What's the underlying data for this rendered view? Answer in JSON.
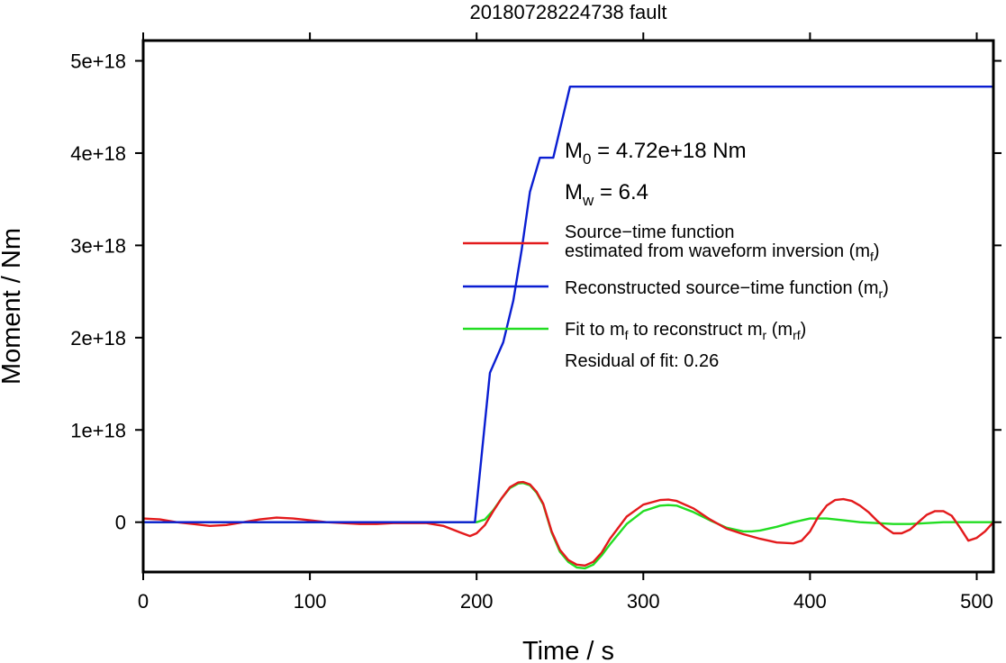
{
  "chart_data": {
    "type": "line",
    "title": "20180728224738 fault",
    "xlabel": "Time / s",
    "ylabel": "Moment / Nm",
    "xlim": [
      0,
      510
    ],
    "ylim": [
      -5.4e+17,
      5.22e+18
    ],
    "x_ticks": [
      0,
      100,
      200,
      300,
      400,
      500
    ],
    "x_tick_labels": [
      "0",
      "100",
      "200",
      "300",
      "400",
      "500"
    ],
    "y_ticks": [
      0,
      1e+18,
      2e+18,
      3e+18,
      4e+18,
      5e+18
    ],
    "y_tick_labels": [
      "0",
      "1e+18",
      "2e+18",
      "3e+18",
      "4e+18",
      "5e+18"
    ],
    "grid": false,
    "legend_position": "right",
    "annotations": {
      "m0": {
        "sym": "M",
        "sub": "0",
        "rest": " = 4.72e+18 Nm"
      },
      "mw": {
        "sym": "M",
        "sub": "w",
        "rest": " = 6.4"
      },
      "residual": "Residual of fit: 0.26"
    },
    "series": [
      {
        "name": "Source−time function estimated from waveform inversion (m_f)",
        "legend_lines": [
          "Source−time function",
          [
            {
              "t": "estimated from waveform inversion (m"
            },
            {
              "t": "f",
              "sub": true
            },
            {
              "t": ")"
            }
          ]
        ],
        "color": "#e31a1c",
        "x": [
          0,
          10,
          20,
          30,
          40,
          50,
          60,
          70,
          80,
          90,
          100,
          110,
          120,
          130,
          140,
          150,
          160,
          170,
          180,
          190,
          196,
          200,
          205,
          210,
          215,
          220,
          225,
          228,
          232,
          236,
          240,
          245,
          250,
          255,
          260,
          265,
          270,
          275,
          280,
          290,
          300,
          310,
          315,
          320,
          330,
          340,
          350,
          360,
          370,
          380,
          390,
          395,
          400,
          405,
          410,
          415,
          420,
          425,
          430,
          435,
          440,
          445,
          450,
          455,
          460,
          465,
          470,
          475,
          480,
          485,
          490,
          495,
          500,
          505,
          510
        ],
        "y": [
          4e+16,
          3e+16,
          0,
          -2e+16,
          -4e+16,
          -3e+16,
          0,
          3e+16,
          5e+16,
          4e+16,
          2e+16,
          0,
          -1e+16,
          -2e+16,
          -2e+16,
          -1e+16,
          -1e+16,
          -1e+16,
          -4e+16,
          -1.1e+17,
          -1.5e+17,
          -1.2e+17,
          -3e+16,
          1.2e+17,
          2.6e+17,
          3.8e+17,
          4.3e+17,
          4.35e+17,
          4.1e+17,
          3.3e+17,
          2e+17,
          -1e+17,
          -3e+17,
          -4.1e+17,
          -4.6e+17,
          -4.7e+17,
          -4.3e+17,
          -3.3e+17,
          -1.8e+17,
          6e+16,
          1.9e+17,
          2.4e+17,
          2.45e+17,
          2.3e+17,
          1.5e+17,
          3e+16,
          -7e+16,
          -1.3e+17,
          -1.8e+17,
          -2.2e+17,
          -2.3e+17,
          -2e+17,
          -1e+17,
          6e+16,
          1.8e+17,
          2.4e+17,
          2.5e+17,
          2.3e+17,
          1.8e+17,
          1.1e+17,
          2e+16,
          -6e+16,
          -1.2e+17,
          -1.2e+17,
          -8e+16,
          0,
          8e+16,
          1.2e+17,
          1.2e+17,
          7e+16,
          -6e+16,
          -2e+17,
          -1.7e+17,
          -1e+17,
          0
        ]
      },
      {
        "name": "Reconstructed source−time function (m_r)",
        "legend_lines": [
          [
            {
              "t": "Reconstructed source−time function (m"
            },
            {
              "t": "r",
              "sub": true
            },
            {
              "t": ")"
            }
          ]
        ],
        "color": "#0a1ed2",
        "x": [
          0,
          199,
          208,
          216,
          222,
          227,
          232,
          238,
          246,
          256,
          510
        ],
        "y": [
          0,
          0,
          1.62e+18,
          1.95e+18,
          2.4e+18,
          2.95e+18,
          3.58e+18,
          3.95e+18,
          3.95e+18,
          4.72e+18,
          4.72e+18
        ]
      },
      {
        "name": "Fit to m_f to reconstruct m_r (m_rf)",
        "legend_lines": [
          [
            {
              "t": "Fit to m"
            },
            {
              "t": "f",
              "sub": true
            },
            {
              "t": " to reconstruct m"
            },
            {
              "t": "r",
              "sub": true
            },
            {
              "t": " (m"
            },
            {
              "t": "rf",
              "sub": true
            },
            {
              "t": ")"
            }
          ]
        ],
        "color": "#22dd22",
        "x": [
          0,
          195,
          200,
          205,
          210,
          215,
          220,
          225,
          228,
          232,
          236,
          240,
          245,
          250,
          255,
          260,
          265,
          270,
          275,
          280,
          290,
          300,
          310,
          315,
          320,
          330,
          340,
          350,
          360,
          365,
          370,
          380,
          390,
          400,
          405,
          410,
          420,
          430,
          440,
          450,
          460,
          470,
          480,
          490,
          500,
          510
        ],
        "y": [
          0,
          0,
          0,
          3e+16,
          1.3e+17,
          2.6e+17,
          3.7e+17,
          4.2e+17,
          4.25e+17,
          4e+17,
          3.2e+17,
          1.9e+17,
          -1.1e+17,
          -3.2e+17,
          -4.3e+17,
          -4.9e+17,
          -5e+17,
          -4.6e+17,
          -3.6e+17,
          -2.4e+17,
          -2e+16,
          1.2e+17,
          1.8e+17,
          1.85e+17,
          1.8e+17,
          1.1e+17,
          2e+16,
          -6e+16,
          -1e+17,
          -1e+17,
          -9e+16,
          -5e+16,
          0,
          4e+16,
          4e+16,
          4e+16,
          2e+16,
          0,
          -1e+16,
          -2e+16,
          -2e+16,
          -1e+16,
          0,
          0,
          0,
          0
        ]
      }
    ]
  }
}
